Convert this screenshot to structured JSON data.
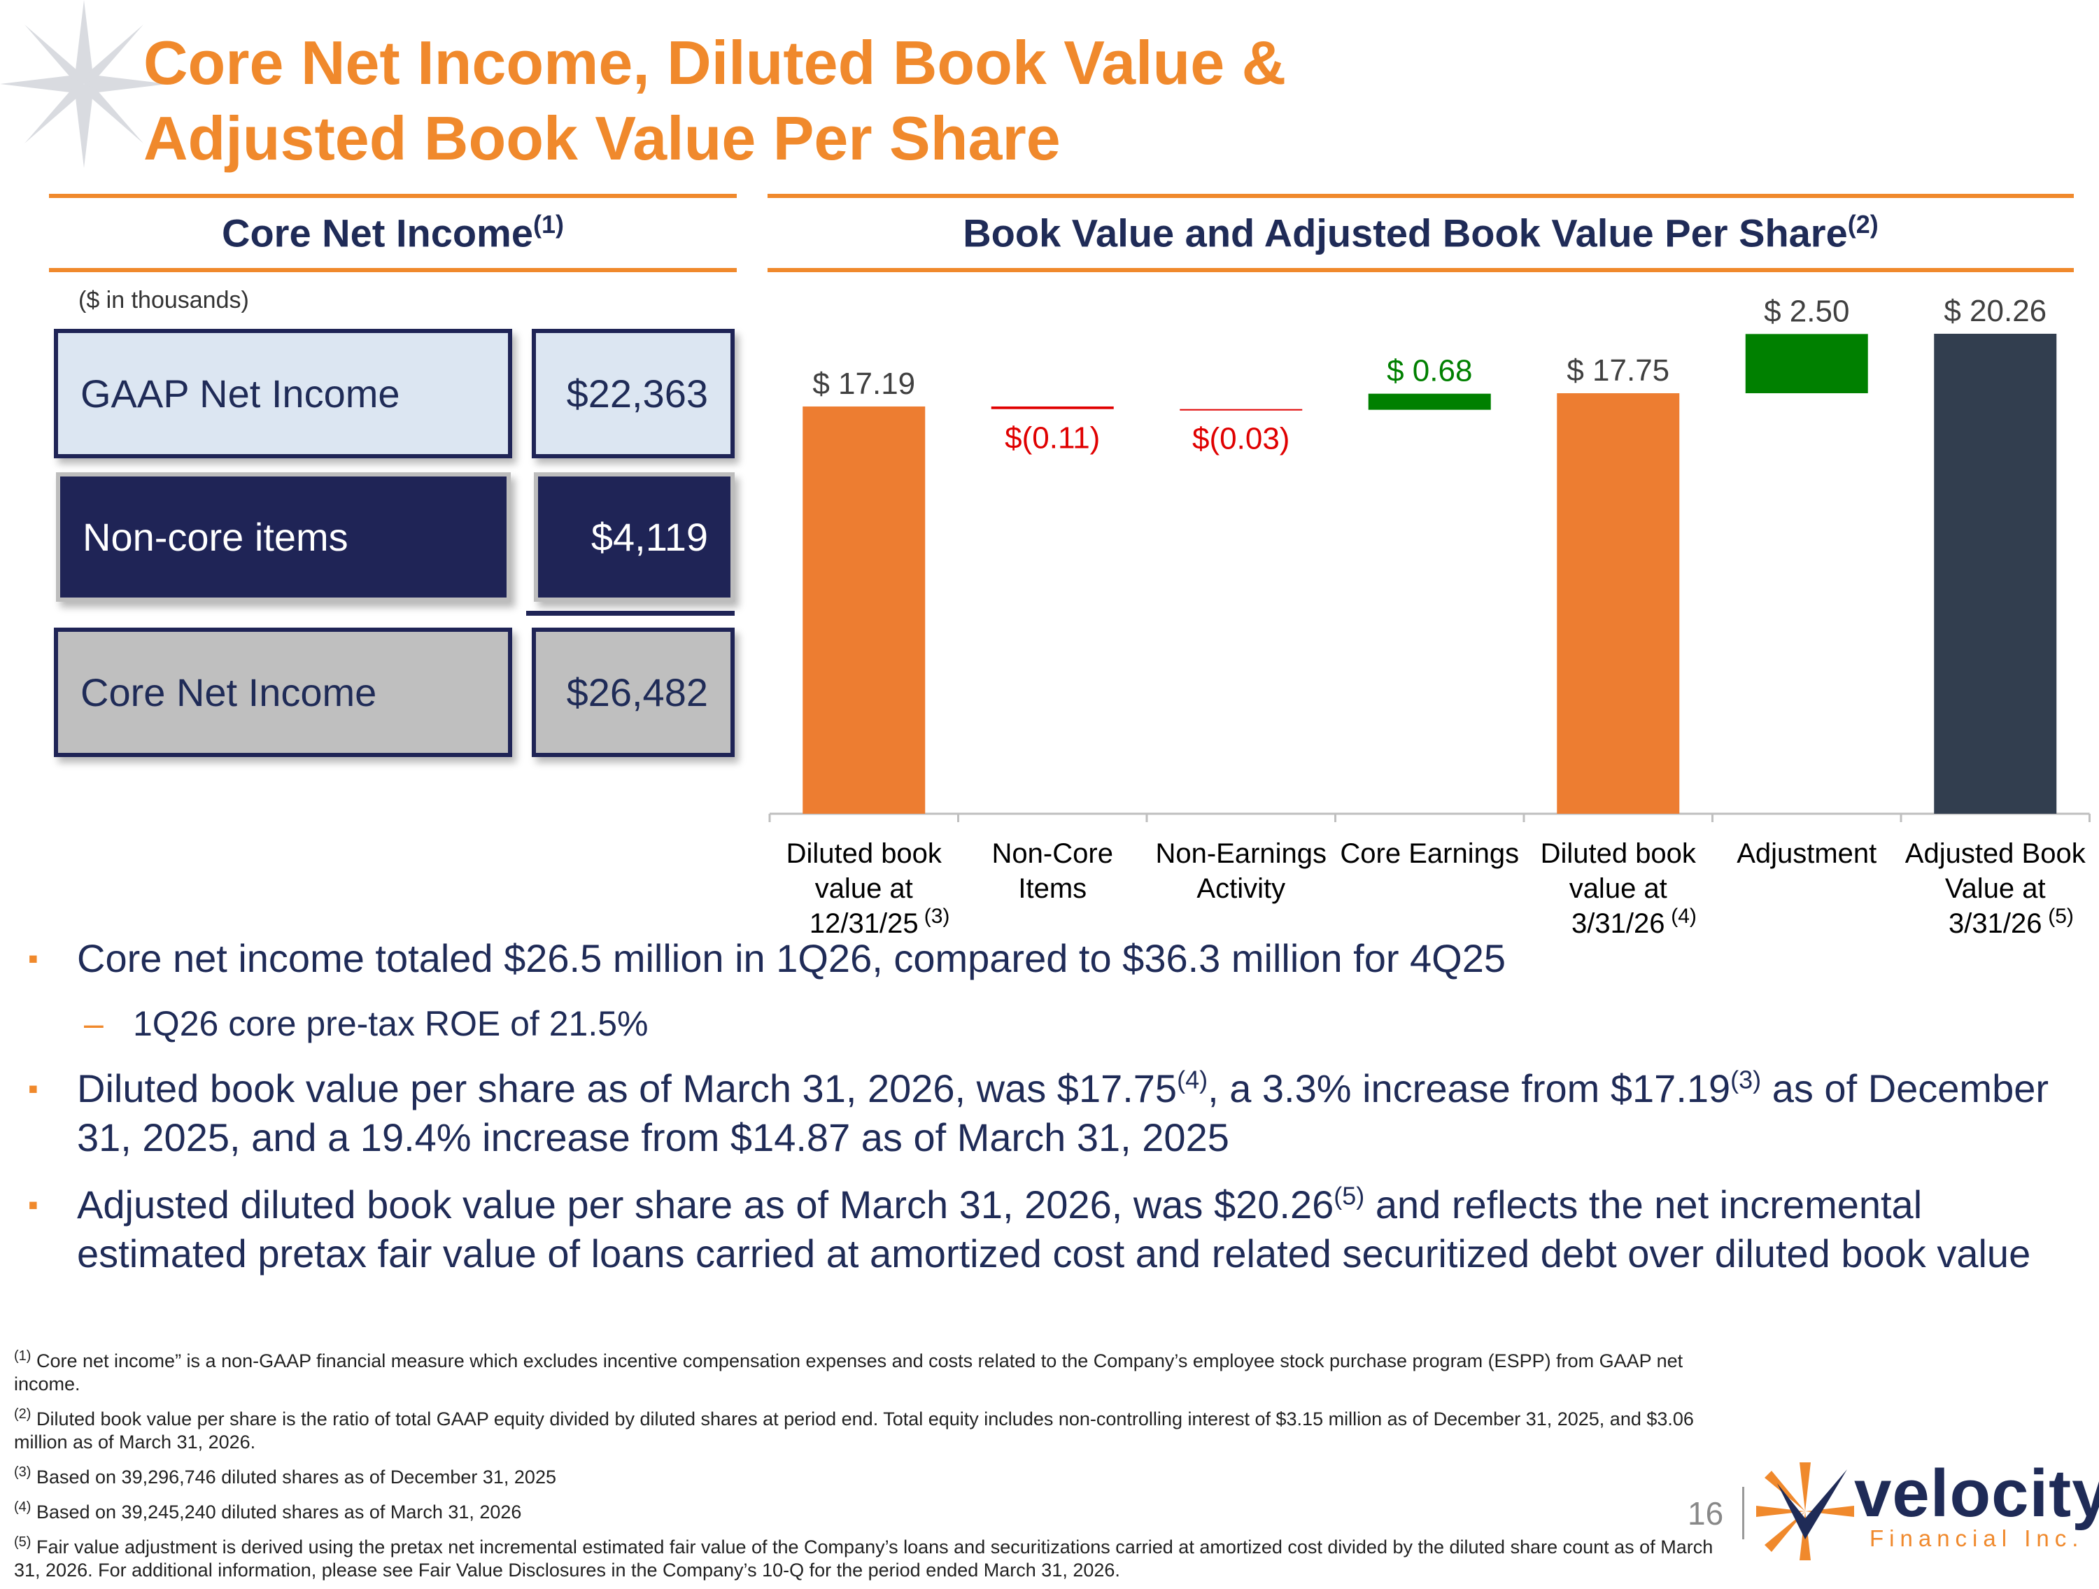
{
  "title": {
    "line1": "Core Net Income, Diluted Book Value &",
    "line2": "Adjusted Book Value Per Share"
  },
  "left_section": {
    "heading": "Core Net Income",
    "heading_note": "(1)",
    "units": "($ in thousands)",
    "rows": [
      {
        "label": "GAAP Net Income",
        "value": "$22,363"
      },
      {
        "label": "Non-core items",
        "value": "$4,119"
      },
      {
        "label": "Core Net Income",
        "value": "$26,482"
      }
    ]
  },
  "right_section": {
    "heading": "Book Value and Adjusted Book Value Per Share",
    "heading_note": "(2)"
  },
  "chart_data": {
    "type": "bar",
    "subtype": "waterfall",
    "ylim": [
      0,
      20.26
    ],
    "grid": false,
    "categories": [
      {
        "lines": [
          "Diluted book",
          "value at",
          "12/31/25"
        ],
        "note": "(3)"
      },
      {
        "lines": [
          "Non-Core",
          "Items"
        ],
        "note": ""
      },
      {
        "lines": [
          "Non-Earnings",
          "Activity"
        ],
        "note": ""
      },
      {
        "lines": [
          "Core Earnings"
        ],
        "note": ""
      },
      {
        "lines": [
          "Diluted book",
          "value at",
          "3/31/26"
        ],
        "note": "(4)"
      },
      {
        "lines": [
          "Adjustment"
        ],
        "note": ""
      },
      {
        "lines": [
          "Adjusted Book",
          "Value at",
          "3/31/26"
        ],
        "note": "(5)"
      }
    ],
    "values": [
      17.19,
      -0.11,
      -0.03,
      0.68,
      17.75,
      2.5,
      20.26
    ],
    "bar_kind": [
      "total",
      "delta",
      "delta",
      "delta",
      "total",
      "delta",
      "total"
    ],
    "data_labels": [
      "$ 17.19",
      "$(0.11)",
      "$(0.03)",
      "$ 0.68",
      "$ 17.75",
      "$ 2.50",
      "$ 20.26"
    ],
    "colors": [
      "#ED7D31",
      "#E00000",
      "#E00000",
      "#008000",
      "#ED7D31",
      "#008000",
      "#323E4F"
    ],
    "label_colors": [
      "#404040",
      "#E00000",
      "#E00000",
      "#008000",
      "#404040",
      "#404040",
      "#404040"
    ]
  },
  "bullets": [
    {
      "text": "Core net income totaled $26.5 million in 1Q26, compared to $36.3 million for 4Q25",
      "sub": [
        "1Q26 core pre-tax ROE of 21.5%"
      ]
    },
    {
      "parts": [
        "Diluted book value per share as of March 31, 2026, was $17.75",
        "(4)",
        ", a 3.3% increase from $17.19",
        "(3)",
        " as of December 31, 2025, and a 19.4% increase from $14.87 as of March 31, 2025"
      ]
    },
    {
      "parts": [
        "Adjusted diluted book value per share as of March 31, 2026, was $20.26",
        "(5)",
        " and reflects the net incremental estimated pretax fair value of loans carried at amortized cost and related securitized debt over diluted book value"
      ]
    }
  ],
  "footnotes": [
    {
      "mark": "(1)",
      "text": "Core net income” is a non-GAAP financial measure which excludes incentive compensation expenses and costs related to the Company’s employee stock purchase program (ESPP) from GAAP net income."
    },
    {
      "mark": "(2)",
      "text": "Diluted book value per share is the ratio of total GAAP equity divided by diluted shares at period end. Total equity includes non-controlling interest of $3.15 million as of December 31, 2025, and $3.06 million as of March 31, 2026."
    },
    {
      "mark": "(3)",
      "text": "Based on 39,296,746 diluted shares as of December 31, 2025"
    },
    {
      "mark": "(4)",
      "text": "Based on 39,245,240 diluted shares as of March 31, 2026"
    },
    {
      "mark": "(5)",
      "text": "Fair value adjustment is derived using the pretax net incremental estimated fair value of the Company’s loans and securitizations carried at amortized cost divided by the diluted share count as of March 31, 2026. For additional information, please see Fair Value Disclosures in the Company’s 10-Q for the period ended March 31, 2026."
    }
  ],
  "footer": {
    "page_number": "16",
    "logo_name": "velocity",
    "logo_tagline": "Financial Inc.",
    "colors": {
      "navy": "#1F2B57",
      "orange": "#F0892C"
    }
  }
}
